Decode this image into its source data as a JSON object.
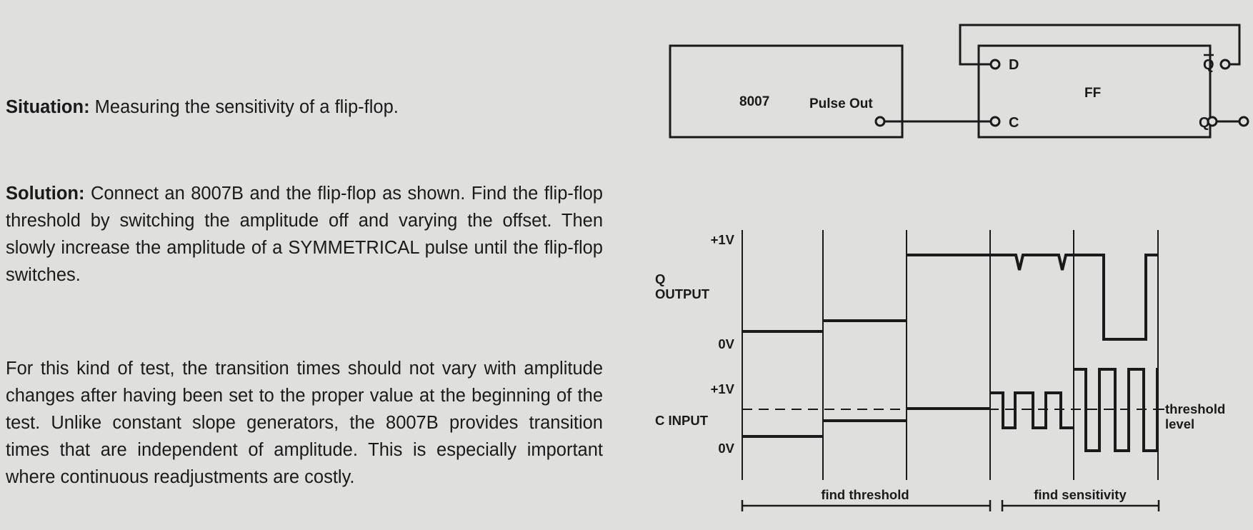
{
  "situation": {
    "label": "Situation:",
    "text": " Measuring the sensitivity of a flip-flop."
  },
  "solution": {
    "label": "Solution:",
    "text": " Connect an 8007B and the flip-flop as shown. Find the flip-flop threshold by switching the amplitude off and varying the offset. Then slowly increase the amplitude of a SYMMETRICAL pulse until the flip-flop switches."
  },
  "note": {
    "text": "For this kind of test, the transition times should not vary with amplitude changes after having been set to the proper value at the beginning of the test. Unlike constant slope generators, the 8007B provides transition times that are independent of amplitude. This is especially important where continuous readjustments are costly."
  },
  "circuit": {
    "generator_label": "8007",
    "pulse_out_label": "Pulse Out",
    "ff_label": "FF",
    "pin_d": "D",
    "pin_c": "C",
    "pin_qbar": "Q",
    "pin_q": "Q"
  },
  "timing": {
    "q_plus": "+1V",
    "q_label_line1": "Q",
    "q_label_line2": "OUTPUT",
    "q_zero": "0V",
    "c_plus": "+1V",
    "c_label": "C INPUT",
    "c_zero": "0V",
    "threshold_line1": "threshold",
    "threshold_line2": "level",
    "find_threshold": "find threshold",
    "find_sensitivity": "find sensitivity"
  }
}
